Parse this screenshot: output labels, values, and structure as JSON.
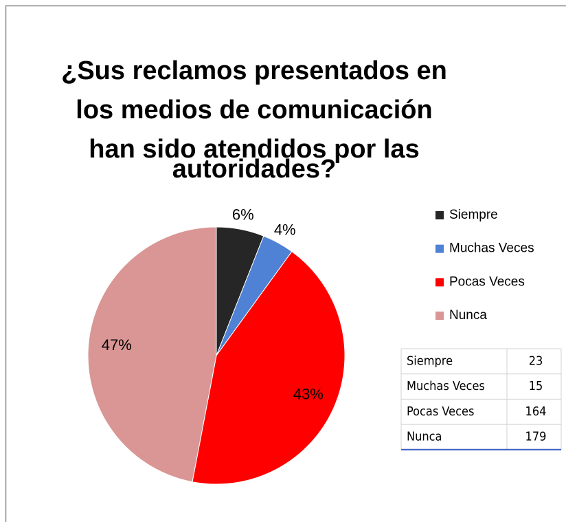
{
  "chart_data": {
    "type": "pie",
    "title": [
      "¿Sus reclamos presentados en",
      "los medios de comunicación",
      "han sido atendidos por las",
      "autoridades?"
    ],
    "categories": [
      "Siempre",
      "Muchas Veces",
      "Pocas Veces",
      "Nunca"
    ],
    "values": [
      6,
      4,
      43,
      47
    ],
    "value_labels": [
      "6%",
      "4%",
      "43%",
      "47%"
    ],
    "colors": [
      "#262626",
      "#4f81d5",
      "#ff0000",
      "#d99694"
    ],
    "legend": "right"
  },
  "table": {
    "rows": [
      [
        "Siempre",
        23
      ],
      [
        "Muchas Veces",
        15
      ],
      [
        "Pocas Veces",
        164
      ],
      [
        "Nunca",
        179
      ]
    ]
  }
}
